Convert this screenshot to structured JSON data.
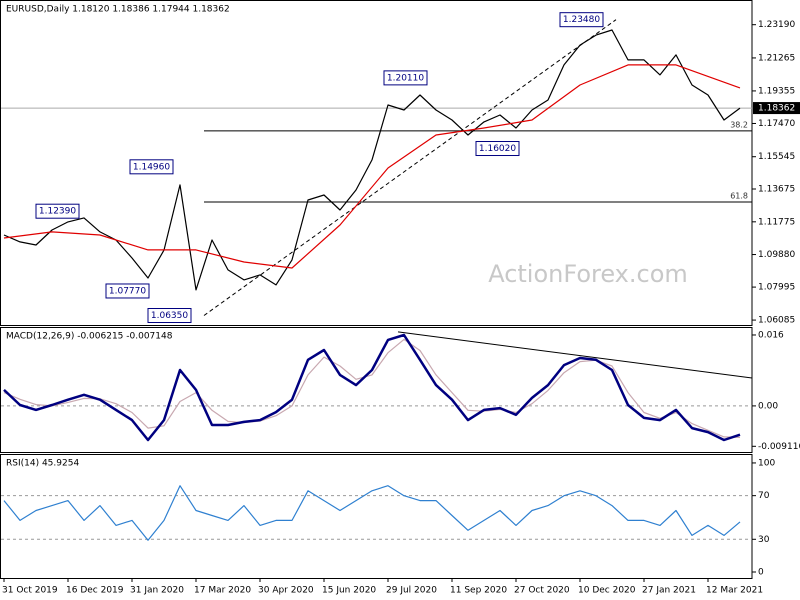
{
  "chart_data": [
    {
      "type": "line",
      "title": "EURUSD,Daily  1.18120 1.18386 1.17944 1.18362",
      "watermark": "ActionForex.com",
      "xlim": [
        0,
        374
      ],
      "ylim": [
        1.058,
        1.2462
      ],
      "yticks": [
        1.06085,
        1.07995,
        {
          "value": 1.0988,
          "label": "1.09880"
        },
        1.11775,
        1.13675,
        1.15545,
        {
          "value": 1.1747,
          "label": "1.17470"
        },
        1.19355,
        1.21265,
        {
          "value": 1.2319,
          "label": "1.23190"
        }
      ],
      "x": [
        0,
        8,
        16,
        24,
        32,
        40,
        48,
        56,
        64,
        72,
        80,
        88,
        96,
        104,
        112,
        120,
        128,
        136,
        144,
        152,
        160,
        168,
        176,
        184,
        192,
        200,
        208,
        216,
        224,
        232,
        240,
        248,
        256,
        264,
        272,
        280,
        288,
        296,
        304,
        312,
        320,
        328,
        336,
        344,
        352,
        360,
        368
      ],
      "series": [
        {
          "color": "#000000",
          "values": [
            1.1101,
            1.1061,
            1.1043,
            1.113,
            1.1177,
            1.12,
            1.1119,
            1.1072,
            1.0968,
            1.0852,
            1.1014,
            1.1391,
            1.0783,
            1.1072,
            1.0899,
            1.0841,
            1.087,
            1.0812,
            1.0957,
            1.1304,
            1.1333,
            1.1246,
            1.1362,
            1.1536,
            1.1854,
            1.1825,
            1.1912,
            1.1825,
            1.1767,
            1.168,
            1.1756,
            1.1796,
            1.1721,
            1.1825,
            1.1883,
            1.2086,
            1.2201,
            1.2259,
            1.2288,
            1.2115,
            1.2115,
            1.2028,
            1.2144,
            1.197,
            1.1912,
            1.1767,
            1.1836
          ]
        },
        {
          "color": "#e00000",
          "x": [
            0,
            24,
            48,
            72,
            96,
            120,
            144,
            168,
            192,
            216,
            240,
            264,
            288,
            312,
            336,
            368
          ],
          "values": [
            1.1084,
            1.1119,
            1.1101,
            1.1015,
            1.1015,
            1.0945,
            1.091,
            1.1159,
            1.1489,
            1.168,
            1.1721,
            1.1767,
            1.197,
            1.2086,
            1.2086,
            1.1953
          ]
        }
      ],
      "annotations": [
        {
          "x": 278,
          "value": 1.2348,
          "label": "1.23480"
        },
        {
          "x": 190,
          "value": 1.2011,
          "label": "1.20110"
        },
        {
          "x": 63,
          "value": 1.1496,
          "label": "1.14960"
        },
        {
          "x": 16,
          "value": 1.1239,
          "label": "1.12390"
        },
        {
          "x": 51,
          "value": 1.0777,
          "label": "1.07770"
        },
        {
          "x": 72,
          "value": 1.0635,
          "label": "1.06350"
        },
        {
          "x": 236,
          "value": 1.1602,
          "label": "1.16020"
        }
      ],
      "fib_levels": [
        {
          "x": 100,
          "value": 1.1704,
          "fib": 38.2
        },
        {
          "x": 100,
          "value": 1.1292,
          "fib": 61.8
        }
      ],
      "trendline": {
        "x": [
          100,
          306
        ],
        "values": [
          1.0635,
          1.2348
        ]
      },
      "last_price": 1.18362
    },
    {
      "type": "line",
      "title": "MACD(12,26,9) -0.006215 -0.007148",
      "xlim": [
        0,
        374
      ],
      "ylim": [
        -0.0104,
        0.0178
      ],
      "yticks": [
        0.016,
        {
          "value": 0,
          "label": "0.00"
        },
        -0.009116
      ],
      "levels": [
        0
      ],
      "x": [
        0,
        8,
        16,
        24,
        32,
        40,
        48,
        56,
        64,
        72,
        80,
        88,
        96,
        104,
        112,
        120,
        128,
        136,
        144,
        152,
        160,
        168,
        176,
        184,
        192,
        200,
        208,
        216,
        224,
        232,
        240,
        248,
        256,
        264,
        272,
        280,
        288,
        296,
        304,
        312,
        320,
        328,
        336,
        344,
        352,
        360,
        368
      ],
      "series": [
        {
          "color": "#c8a8b0",
          "values": [
            0.003,
            0.0015,
            0.0003,
            0.0,
            0.0008,
            0.0017,
            0.0016,
            0.0005,
            -0.0015,
            -0.005,
            -0.0045,
            0.001,
            0.003,
            -0.001,
            -0.0035,
            -0.0038,
            -0.0034,
            -0.0022,
            0.0,
            0.007,
            0.011,
            0.009,
            0.006,
            0.007,
            0.012,
            0.015,
            0.0125,
            0.007,
            0.003,
            -0.001,
            -0.0012,
            -0.0008,
            -0.0015,
            0.0005,
            0.0035,
            0.0075,
            0.01,
            0.0103,
            0.009,
            0.003,
            -0.0015,
            -0.0028,
            -0.0015,
            -0.004,
            -0.0055,
            -0.007,
            -0.0071
          ]
        },
        {
          "color": "#000080",
          "values": [
            0.0036,
            0.0002,
            -0.0009,
            0.0002,
            0.0014,
            0.0025,
            0.0014,
            -0.0009,
            -0.0032,
            -0.0077,
            -0.0032,
            0.0081,
            0.0036,
            -0.0043,
            -0.0043,
            -0.0036,
            -0.0032,
            -0.0014,
            0.0014,
            0.0104,
            0.0126,
            0.007,
            0.0047,
            0.0081,
            0.0149,
            0.016,
            0.0104,
            0.0047,
            0.0014,
            -0.0032,
            -0.0009,
            -0.0005,
            -0.002,
            0.0018,
            0.0047,
            0.0092,
            0.0108,
            0.0104,
            0.0081,
            0.0002,
            -0.0027,
            -0.0032,
            -0.0009,
            -0.005,
            -0.0059,
            -0.0077,
            -0.0065
          ]
        }
      ],
      "trendline": {
        "x": [
          197,
          374
        ],
        "values": [
          0.0167,
          0.0063
        ]
      }
    },
    {
      "type": "line",
      "title": "RSI(14) 45.9254",
      "xlim": [
        0,
        374
      ],
      "ylim": [
        -5.5,
        108.2
      ],
      "yticks": [
        100,
        70,
        30,
        0
      ],
      "levels": [
        70,
        30
      ],
      "xticks": [
        {
          "value": 0,
          "label": "31 Oct 2019"
        },
        {
          "value": 32,
          "label": "16 Dec 2019"
        },
        {
          "value": 64,
          "label": "31 Jan 2020"
        },
        {
          "value": 96,
          "label": "17 Mar 2020"
        },
        {
          "value": 128,
          "label": "30 Apr 2020"
        },
        {
          "value": 160,
          "label": "15 Jun 2020"
        },
        {
          "value": 192,
          "label": "29 Jul 2020"
        },
        {
          "value": 224,
          "label": "11 Sep 2020"
        },
        {
          "value": 256,
          "label": "27 Oct 2020"
        },
        {
          "value": 288,
          "label": "10 Dec 2020"
        },
        {
          "value": 320,
          "label": "27 Jan 2021"
        },
        {
          "value": 352,
          "label": "12 Mar 2021"
        }
      ],
      "x": [
        0,
        8,
        16,
        24,
        32,
        40,
        48,
        56,
        64,
        72,
        80,
        88,
        96,
        104,
        112,
        120,
        128,
        136,
        144,
        152,
        160,
        168,
        176,
        184,
        192,
        200,
        208,
        216,
        224,
        232,
        240,
        248,
        256,
        264,
        272,
        280,
        288,
        296,
        304,
        312,
        320,
        328,
        336,
        344,
        352,
        360,
        368
      ],
      "series": [
        {
          "color": "#2f80d0",
          "values": [
            65.5,
            47.3,
            56.4,
            60.9,
            65.5,
            47.3,
            60.9,
            42.7,
            47.3,
            29.1,
            47.3,
            79.1,
            56.4,
            51.8,
            47.3,
            60.9,
            42.7,
            47.3,
            47.3,
            74.5,
            65.5,
            56.4,
            65.5,
            74.5,
            79.1,
            70,
            65.5,
            65.5,
            51.8,
            38.2,
            47.3,
            56.4,
            42.7,
            56.4,
            60.9,
            70,
            74.5,
            70,
            60.9,
            47.3,
            47.3,
            42.7,
            56.4,
            33.6,
            42.7,
            33.6,
            45.9
          ]
        }
      ]
    }
  ]
}
